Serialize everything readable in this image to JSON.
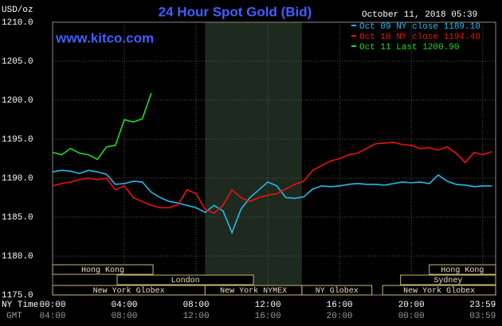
{
  "chart_data": {
    "type": "line",
    "title": "24 Hour Spot Gold (Bid)",
    "y_unit": "USD/oz",
    "timestamp": "October 11, 2018 05:39",
    "watermark": "www.kitco.com",
    "x_axis_label": "NY Time",
    "x2_axis_label": "GMT",
    "x": [
      0,
      0.5,
      1,
      1.5,
      2,
      2.5,
      3,
      3.5,
      4,
      4.5,
      5,
      5.5,
      6,
      6.5,
      7,
      7.5,
      8,
      8.5,
      9,
      9.5,
      10,
      10.5,
      11,
      11.5,
      12,
      12.5,
      13,
      13.5,
      14,
      14.5,
      15,
      15.5,
      16,
      16.5,
      17,
      17.5,
      18,
      18.5,
      19,
      19.5,
      20,
      20.5,
      21,
      21.5,
      22,
      22.5,
      23,
      23.5,
      24,
      24.5
    ],
    "series": [
      {
        "name": "Oct 09 NY close 1189.10",
        "color": "#22bbee",
        "values": [
          1190.8,
          1191,
          1190.9,
          1190.6,
          1191,
          1190.8,
          1190.5,
          1189.2,
          1189.3,
          1189.6,
          1189.5,
          1188.2,
          1187.5,
          1187,
          1186.8,
          1186.5,
          1186.2,
          1185.6,
          1186.5,
          1185.8,
          1183,
          1186,
          1187.5,
          1188.5,
          1189.5,
          1189,
          1187.5,
          1187.4,
          1187.6,
          1188.6,
          1189,
          1188.9,
          1189,
          1189.2,
          1189.3,
          1189.2,
          1189.2,
          1189.1,
          1189.3,
          1189.5,
          1189.4,
          1189.5,
          1189.3,
          1190.4,
          1189.6,
          1189.2,
          1189.1,
          1188.9,
          1189,
          1189
        ]
      },
      {
        "name": "Oct 10 NY close 1194.40",
        "color": "#ee1111",
        "values": [
          1189,
          1189.3,
          1189.5,
          1189.8,
          1190,
          1189.8,
          1190,
          1188.5,
          1189,
          1187.5,
          1187,
          1186.5,
          1186.2,
          1186.2,
          1186.6,
          1188.5,
          1188,
          1186,
          1185.5,
          1186.5,
          1188.5,
          1187.5,
          1187,
          1187.5,
          1187.8,
          1188,
          1188.6,
          1189.2,
          1189.6,
          1191,
          1191.6,
          1192.2,
          1192.5,
          1193,
          1193.2,
          1193.8,
          1194.4,
          1194.5,
          1194.6,
          1194.3,
          1194.2,
          1193.8,
          1193.9,
          1193.6,
          1194,
          1193.2,
          1192,
          1193.3,
          1193,
          1193.4
        ]
      },
      {
        "name": "Oct 11 Last 1200.90",
        "color": "#22dd22",
        "values": [
          1193.3,
          1193,
          1193.8,
          1193.2,
          1193,
          1192.4,
          1194,
          1194.2,
          1197.5,
          1197.2,
          1197.6,
          1200.9,
          null,
          null,
          null,
          null,
          null,
          null,
          null,
          null,
          null,
          null,
          null,
          null,
          null,
          null,
          null,
          null,
          null,
          null,
          null,
          null,
          null,
          null,
          null,
          null,
          null,
          null,
          null,
          null,
          null,
          null,
          null,
          null,
          null,
          null,
          null,
          null,
          null,
          null
        ]
      }
    ],
    "xlim": [
      0,
      24.7
    ],
    "ylim": [
      1175,
      1210
    ],
    "xticks": [
      {
        "value": 0,
        "label": "00:00"
      },
      {
        "value": 4,
        "label": "04:00"
      },
      {
        "value": 8,
        "label": "08:00"
      },
      {
        "value": 12,
        "label": "12:00"
      },
      {
        "value": 16,
        "label": "16:00"
      },
      {
        "value": 20,
        "label": "20:00"
      },
      {
        "value": 23.98,
        "label": "23:59"
      }
    ],
    "x2_tick_labels": [
      "04:00",
      "08:00",
      "12:00",
      "16:00",
      "20:00",
      "00:00",
      "03:59"
    ],
    "yticks": [
      {
        "value": 1175,
        "label": "1175.0"
      },
      {
        "value": 1180,
        "label": "1180.0"
      },
      {
        "value": 1185,
        "label": "1185.0"
      },
      {
        "value": 1190,
        "label": "1190.0"
      },
      {
        "value": 1195,
        "label": "1195.0"
      },
      {
        "value": 1200,
        "label": "1200.0"
      },
      {
        "value": 1205,
        "label": "1205.0"
      },
      {
        "value": 1210,
        "label": "1210.0"
      }
    ],
    "grid": true,
    "highlight": [
      8.5,
      13.9
    ],
    "sessions": [
      [
        {
          "label": "Hong Kong",
          "start": 0,
          "end": 5.6
        },
        {
          "label": "Hong Kong",
          "start": 21,
          "end": 24.7
        }
      ],
      [
        {
          "label": "London",
          "start": 3.6,
          "end": 11.2
        },
        {
          "label": "Sydney",
          "start": 19.4,
          "end": 24.7
        }
      ],
      [
        {
          "label": "New York Globex",
          "start": 0,
          "end": 8.5
        },
        {
          "label": "New York NYMEX",
          "start": 8.5,
          "end": 13.9
        },
        {
          "label": "NY Globex",
          "start": 13.9,
          "end": 17.8
        },
        {
          "label": "New York Globex",
          "start": 18.4,
          "end": 24.7
        }
      ]
    ]
  }
}
